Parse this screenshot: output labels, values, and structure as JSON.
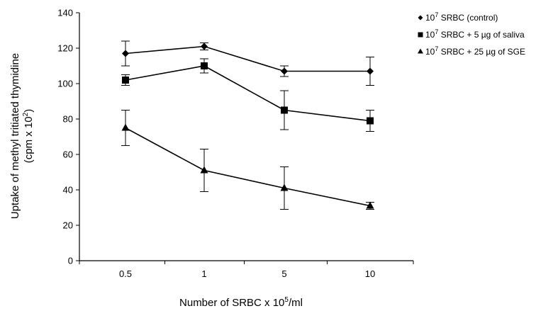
{
  "chart_data": {
    "type": "line",
    "xlabel_main": "Number of SRBC x 10",
    "xlabel_sup": "5",
    "xlabel_tail": "/ml",
    "ylabel_line1": "Uptake of methyl tritiated thymidine",
    "ylabel_line2_main": "(cpm x 10",
    "ylabel_line2_sup": "2",
    "ylabel_line2_tail": ")",
    "categories": [
      "0.5",
      "1",
      "5",
      "10"
    ],
    "ylim": [
      0,
      140
    ],
    "yticks": [
      0,
      20,
      40,
      60,
      80,
      100,
      120,
      140
    ],
    "grid": false,
    "legend_position": "top-right",
    "series": [
      {
        "name_base": "10",
        "name_sup": "7",
        "name_rest": " SRBC (control)",
        "marker": "diamond",
        "values": [
          117,
          121,
          107,
          107
        ],
        "errors": [
          7,
          2,
          3,
          8
        ]
      },
      {
        "name_base": "10",
        "name_sup": "7",
        "name_rest": " SRBC + 5  µg of saliva",
        "marker": "square",
        "values": [
          102,
          110,
          85,
          79
        ],
        "errors": [
          3,
          4,
          11,
          6
        ]
      },
      {
        "name_base": "10",
        "name_sup": "7",
        "name_rest": " SRBC + 25  µg of SGE",
        "marker": "triangle",
        "values": [
          75,
          51,
          41,
          31
        ],
        "errors": [
          10,
          12,
          12,
          2
        ]
      }
    ]
  }
}
